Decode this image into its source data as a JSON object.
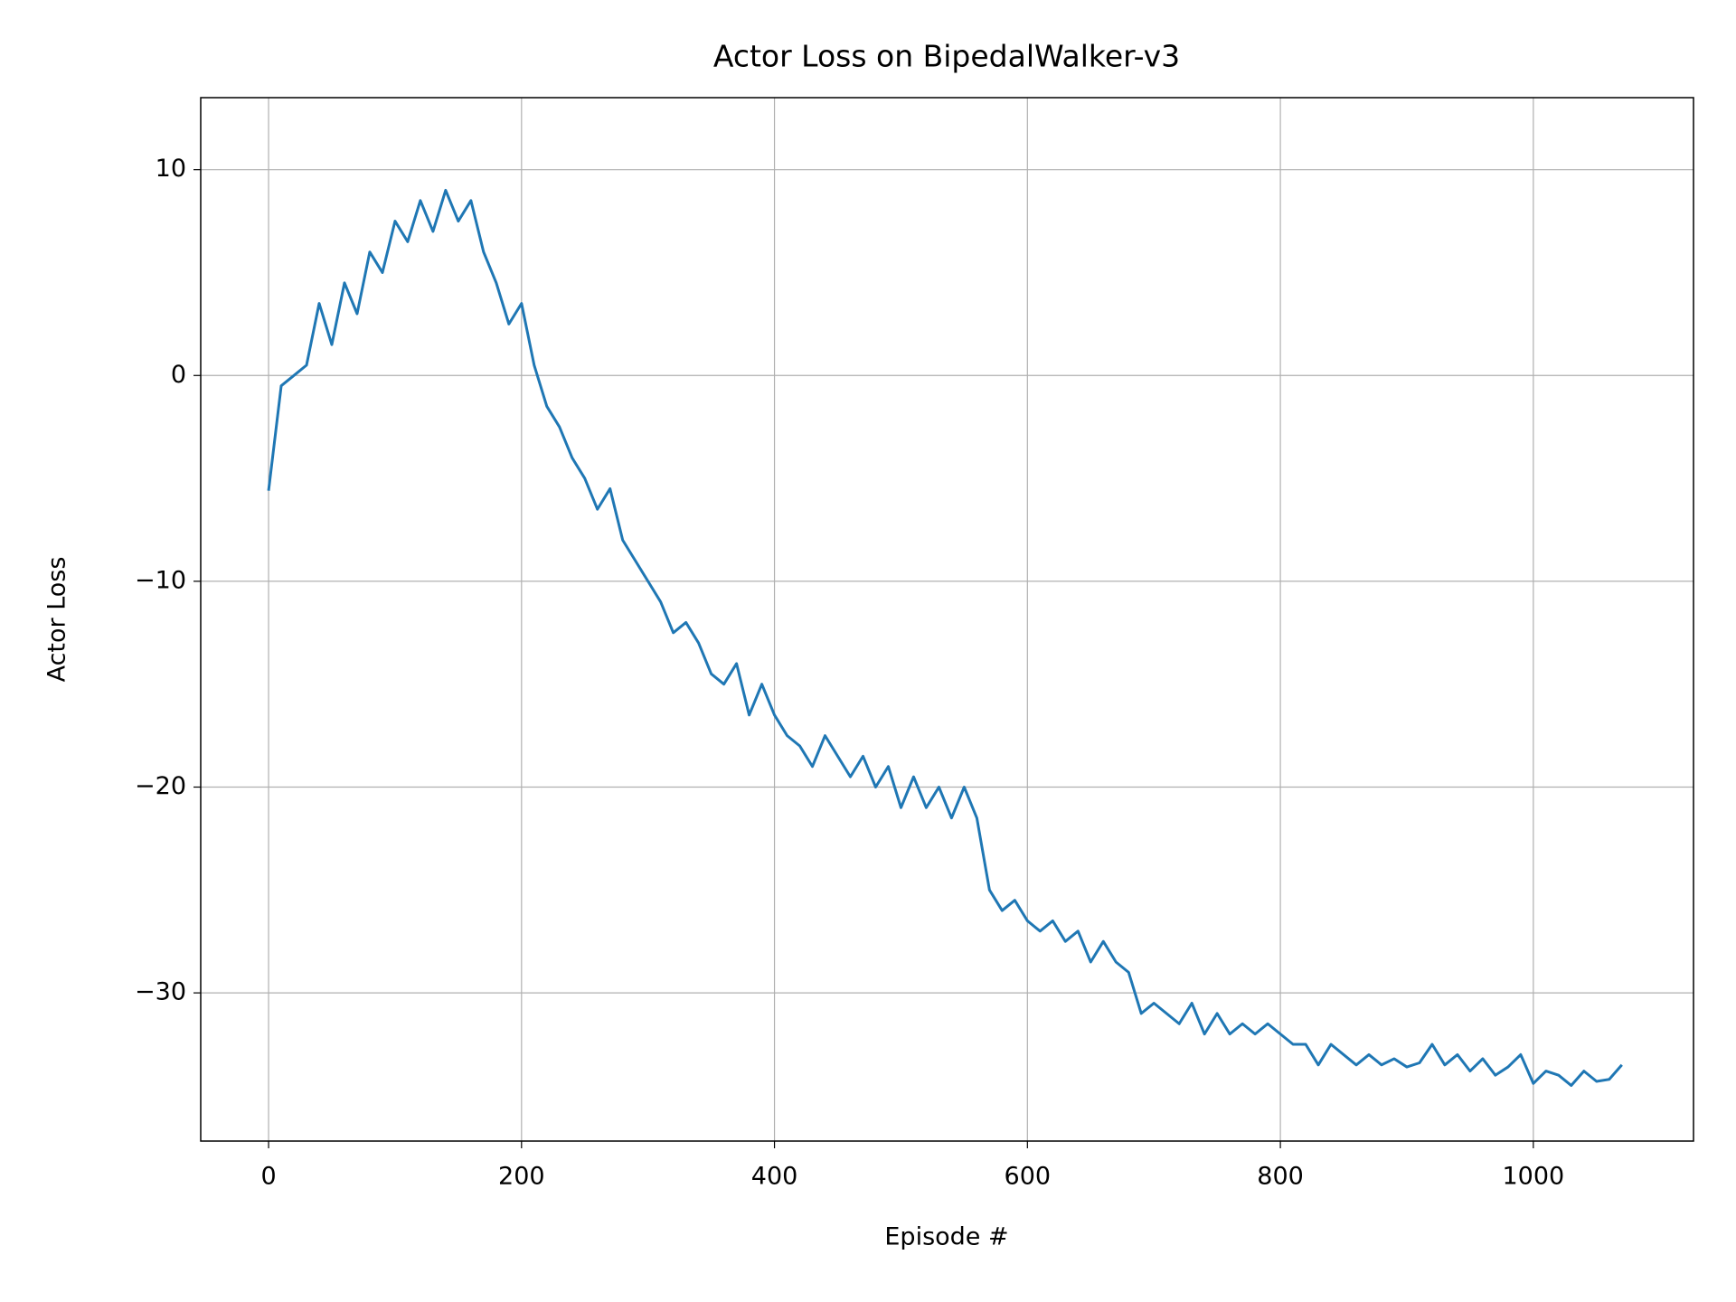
{
  "chart_data": {
    "type": "line",
    "title": "Actor Loss on BipedalWalker-v3",
    "xlabel": "Episode #",
    "ylabel": "Actor Loss",
    "x": [
      0,
      10,
      20,
      30,
      40,
      50,
      60,
      70,
      80,
      90,
      100,
      110,
      120,
      130,
      140,
      150,
      160,
      170,
      180,
      190,
      200,
      210,
      220,
      230,
      240,
      250,
      260,
      270,
      280,
      290,
      300,
      310,
      320,
      330,
      340,
      350,
      360,
      370,
      380,
      390,
      400,
      410,
      420,
      430,
      440,
      450,
      460,
      470,
      480,
      490,
      500,
      510,
      520,
      530,
      540,
      550,
      560,
      570,
      580,
      590,
      600,
      610,
      620,
      630,
      640,
      650,
      660,
      670,
      680,
      690,
      700,
      710,
      720,
      730,
      740,
      750,
      760,
      770,
      780,
      790,
      800,
      810,
      820,
      830,
      840,
      850,
      860,
      870,
      880,
      890,
      900,
      910,
      920,
      930,
      940,
      950,
      960,
      970,
      980,
      990,
      1000,
      1010,
      1020,
      1030,
      1040,
      1050,
      1060,
      1070
    ],
    "series": [
      {
        "name": "Actor Loss",
        "color": "#1f77b4",
        "values": [
          -5.6,
          -0.5,
          0,
          0.5,
          3.5,
          1.5,
          4.5,
          3,
          6,
          5,
          7.5,
          6.5,
          8.5,
          7,
          9,
          7.5,
          8.5,
          6,
          4.5,
          2.5,
          3.5,
          0.5,
          -1.5,
          -2.5,
          -4,
          -5,
          -6.5,
          -5.5,
          -8,
          -9,
          -10,
          -11,
          -12.5,
          -12,
          -13,
          -14.5,
          -15,
          -14,
          -16.5,
          -15,
          -16.5,
          -17.5,
          -18,
          -19,
          -17.5,
          -18.5,
          -19.5,
          -18.5,
          -20,
          -19,
          -21,
          -19.5,
          -21,
          -20,
          -21.5,
          -20,
          -21.5,
          -25,
          -26,
          -25.5,
          -26.5,
          -27,
          -26.5,
          -27.5,
          -27,
          -28.5,
          -27.5,
          -28.5,
          -29,
          -31,
          -30.5,
          -31,
          -31.5,
          -30.5,
          -32,
          -31,
          -32,
          -31.5,
          -32,
          -31.5,
          -32,
          -32.5,
          -32.5,
          -33.5,
          -32.5,
          -33,
          -33.5,
          -33,
          -33.5,
          -33.2,
          -33.6,
          -33.4,
          -32.5,
          -33.5,
          -33,
          -33.8,
          -33.2,
          -34,
          -33.6,
          -33,
          -34.4,
          -33.8,
          -34,
          -34.5,
          -33.8,
          -34.3,
          -34.2,
          -33.5
        ]
      }
    ],
    "xlim": [
      -53.65,
      1126.65
    ],
    "ylim": [
      -37.2,
      13.5
    ],
    "xticks": [
      0,
      200,
      400,
      600,
      800,
      1000
    ],
    "yticks": [
      {
        "value": -30,
        "label": "−30"
      },
      {
        "value": -20,
        "label": "−20"
      },
      {
        "value": -10,
        "label": "−10"
      },
      0,
      10
    ],
    "grid": true
  }
}
